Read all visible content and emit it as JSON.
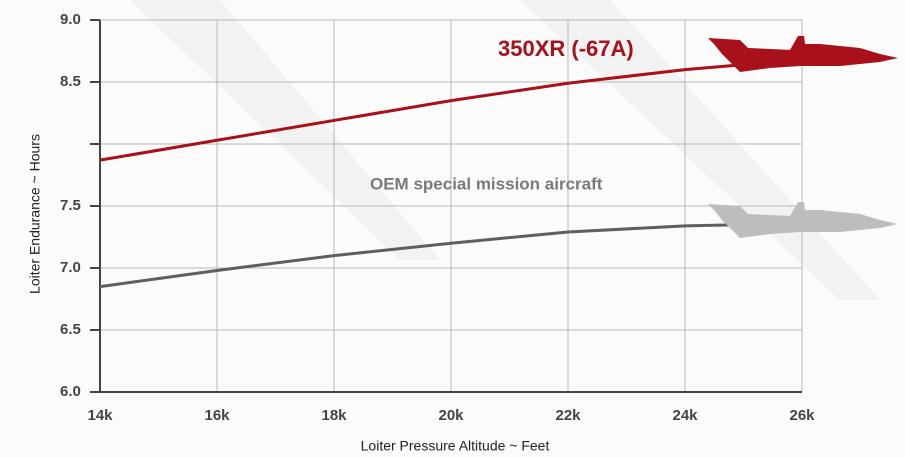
{
  "chart_data": {
    "type": "line",
    "x_label": "Loiter Pressure Altitude ~ Feet",
    "y_label": "Loiter Endurance ~ Hours",
    "x": [
      14000,
      16000,
      18000,
      20000,
      22000,
      24000,
      25000
    ],
    "series": [
      {
        "name": "350XR (-67A)",
        "color": "#a8101a",
        "values": [
          7.87,
          8.03,
          8.19,
          8.35,
          8.49,
          8.6,
          8.64
        ]
      },
      {
        "name": "OEM special mission aircraft",
        "color": "#5f5f5f",
        "values": [
          6.85,
          6.98,
          7.1,
          7.2,
          7.29,
          7.34,
          7.35
        ]
      }
    ],
    "xlim": [
      14000,
      26000
    ],
    "xticks": [
      {
        "value": 14000,
        "label": "14k"
      },
      {
        "value": 16000,
        "label": "16k"
      },
      {
        "value": 18000,
        "label": "18k"
      },
      {
        "value": 20000,
        "label": "20k"
      },
      {
        "value": 22000,
        "label": "22k"
      },
      {
        "value": 24000,
        "label": "24k"
      },
      {
        "value": 26000,
        "label": "26k"
      }
    ],
    "ylim": [
      6,
      9
    ],
    "yticks": [
      {
        "value": 9,
        "label": "9.0"
      },
      {
        "value": 8.5,
        "label": "8.5"
      },
      {
        "value": 8,
        "label": null
      },
      {
        "value": 7.5,
        "label": "7.5"
      },
      {
        "value": 7,
        "label": "7.0"
      },
      {
        "value": 6.5,
        "label": "6.5"
      },
      {
        "value": 6,
        "label": "6.0"
      }
    ],
    "grid": true
  }
}
